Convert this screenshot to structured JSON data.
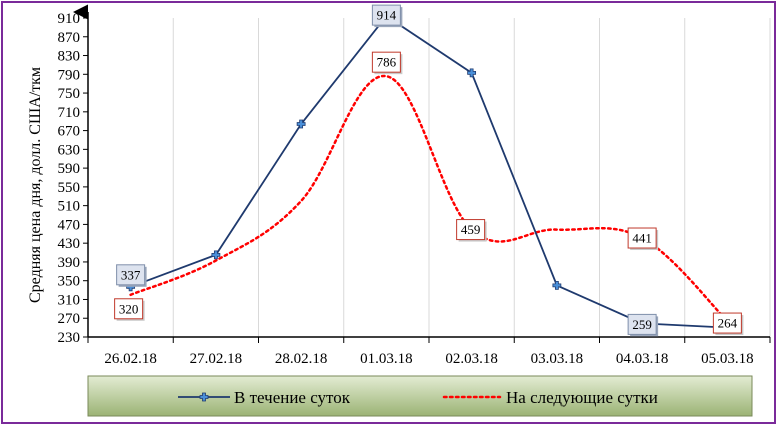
{
  "chart_data": {
    "type": "line",
    "ylabel": "Средняя цена дня, долл. США/ткм",
    "xlabel": "",
    "ylim": [
      230,
      910
    ],
    "yticks": [
      910,
      870,
      830,
      790,
      750,
      710,
      670,
      630,
      590,
      550,
      510,
      470,
      430,
      390,
      350,
      310,
      270,
      230
    ],
    "categories": [
      "26.02.18",
      "27.02.18",
      "28.02.18",
      "01.03.18",
      "02.03.18",
      "03.03.18",
      "04.03.18",
      "05.03.18"
    ],
    "grid": "vertical",
    "legend_position": "bottom",
    "series": [
      {
        "name": "В течение суток",
        "values": [
          337,
          405,
          684,
          914,
          793,
          340,
          259,
          250
        ],
        "labels": [
          "337",
          "",
          "",
          "914",
          "",
          "",
          "259",
          ""
        ],
        "color": "#1f3a6e",
        "marker_color": "#4a8fd8",
        "label_border": "#7f8faa",
        "label_fill": "#dde3ef",
        "style": "solid"
      },
      {
        "name": "На следующие сутки",
        "values": [
          320,
          393,
          520,
          786,
          459,
          459,
          441,
          264
        ],
        "labels": [
          "320",
          "",
          "",
          "786",
          "459",
          "",
          "441",
          "264"
        ],
        "color": "#ff0000",
        "label_border": "#c0392b",
        "label_fill": "#ffffff",
        "style": "dotted"
      }
    ]
  },
  "colors": {
    "frame": "#7a2a9a",
    "legend_bg_top": "#e3ecd3",
    "legend_bg_bottom": "#9bb374",
    "axis": "#000000",
    "grid": "#d9d9d9"
  }
}
